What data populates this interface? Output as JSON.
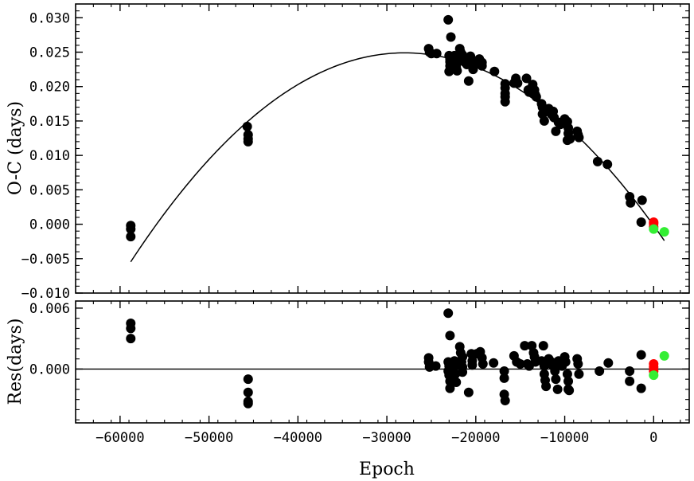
{
  "chart_data": [
    {
      "type": "scatter",
      "panel": "top",
      "xlabel": "",
      "ylabel": "O-C (days)",
      "xlim": [
        -65000,
        4000
      ],
      "ylim": [
        -0.01,
        0.032
      ],
      "y_ticks": [
        "0.030",
        "0.025",
        "0.020",
        "0.015",
        "0.010",
        "0.005",
        "0.000",
        "−0.005",
        "−0.010"
      ],
      "y_tick_values": [
        0.03,
        0.025,
        0.02,
        0.015,
        0.01,
        0.005,
        0.0,
        -0.005,
        -0.01
      ],
      "grid": false,
      "fit_curve": {
        "type": "quadratic",
        "x_range": [
          -58800,
          1200
        ],
        "peak_x": -28000,
        "peak_y": 0.0249,
        "curvature": -3.2e-11,
        "color": "#000000"
      },
      "series": [
        {
          "color": "#000000",
          "points": [
            [
              -58800,
              -0.0002
            ],
            [
              -58800,
              -0.0007
            ],
            [
              -58800,
              -0.0018
            ],
            [
              -45700,
              0.0142
            ],
            [
              -45600,
              0.013
            ],
            [
              -45600,
              0.0124
            ],
            [
              -45600,
              0.012
            ],
            [
              -25300,
              0.0255
            ],
            [
              -25200,
              0.025
            ],
            [
              -25000,
              0.0248
            ],
            [
              -24400,
              0.0248
            ],
            [
              -23100,
              0.0297
            ],
            [
              -22800,
              0.0272
            ],
            [
              -23000,
              0.0245
            ],
            [
              -22900,
              0.024
            ],
            [
              -22900,
              0.0236
            ],
            [
              -22900,
              0.023
            ],
            [
              -22800,
              0.0225
            ],
            [
              -23000,
              0.0222
            ],
            [
              -22400,
              0.0245
            ],
            [
              -22400,
              0.0238
            ],
            [
              -22200,
              0.0232
            ],
            [
              -22200,
              0.0228
            ],
            [
              -22100,
              0.0223
            ],
            [
              -21800,
              0.0255
            ],
            [
              -21700,
              0.025
            ],
            [
              -21500,
              0.0246
            ],
            [
              -21600,
              0.024
            ],
            [
              -21300,
              0.0236
            ],
            [
              -21000,
              0.0232
            ],
            [
              -20800,
              0.0208
            ],
            [
              -20600,
              0.0244
            ],
            [
              -20400,
              0.0238
            ],
            [
              -20300,
              0.0225
            ],
            [
              -20000,
              0.0232
            ],
            [
              -19600,
              0.024
            ],
            [
              -19300,
              0.0235
            ],
            [
              -19300,
              0.023
            ],
            [
              -17900,
              0.0222
            ],
            [
              -16700,
              0.0204
            ],
            [
              -16700,
              0.0198
            ],
            [
              -16700,
              0.019
            ],
            [
              -16700,
              0.0185
            ],
            [
              -16700,
              0.0178
            ],
            [
              -15700,
              0.0205
            ],
            [
              -15500,
              0.0212
            ],
            [
              -15300,
              0.0205
            ],
            [
              -14300,
              0.0212
            ],
            [
              -14100,
              0.0195
            ],
            [
              -14000,
              0.0192
            ],
            [
              -13600,
              0.0203
            ],
            [
              -13400,
              0.0195
            ],
            [
              -13300,
              0.0188
            ],
            [
              -13200,
              0.0185
            ],
            [
              -12600,
              0.0175
            ],
            [
              -12500,
              0.017
            ],
            [
              -12500,
              0.016
            ],
            [
              -12300,
              0.015
            ],
            [
              -12100,
              0.0164
            ],
            [
              -11800,
              0.0168
            ],
            [
              -11500,
              0.016
            ],
            [
              -11300,
              0.0164
            ],
            [
              -11200,
              0.0155
            ],
            [
              -11000,
              0.0135
            ],
            [
              -10700,
              0.0148
            ],
            [
              -10500,
              0.0145
            ],
            [
              -10000,
              0.0153
            ],
            [
              -9700,
              0.0149
            ],
            [
              -9600,
              0.014
            ],
            [
              -9600,
              0.0132
            ],
            [
              -9700,
              0.0122
            ],
            [
              -9400,
              0.0124
            ],
            [
              -8600,
              0.0135
            ],
            [
              -8500,
              0.013
            ],
            [
              -8400,
              0.0126
            ],
            [
              -6300,
              0.0091
            ],
            [
              -5200,
              0.0087
            ],
            [
              -2700,
              0.004
            ],
            [
              -2600,
              0.0031
            ],
            [
              -1300,
              0.0035
            ],
            [
              -1400,
              0.0003
            ]
          ]
        },
        {
          "color": "#ff0000",
          "points": [
            [
              0,
              0.0003
            ],
            [
              0,
              0.0001
            ],
            [
              0,
              -0.0004
            ]
          ]
        },
        {
          "color": "#33ee33",
          "points": [
            [
              0,
              -0.0007
            ],
            [
              1200,
              -0.0011
            ]
          ]
        }
      ]
    },
    {
      "type": "scatter",
      "panel": "bottom",
      "xlabel": "Epoch",
      "ylabel": "Res(days)",
      "xlim": [
        -65000,
        4000
      ],
      "ylim": [
        -0.0053,
        0.0067
      ],
      "x_ticks": [
        "−60000",
        "−50000",
        "−40000",
        "−30000",
        "−20000",
        "−10000",
        "0"
      ],
      "x_tick_values": [
        -60000,
        -50000,
        -40000,
        -30000,
        -20000,
        -10000,
        0
      ],
      "y_ticks": [
        "0.006",
        "0.000"
      ],
      "y_tick_values": [
        0.006,
        0.0
      ],
      "zero_line": true,
      "grid": false,
      "series": [
        {
          "color": "#000000",
          "points": [
            [
              -58800,
              0.0045
            ],
            [
              -58800,
              0.004
            ],
            [
              -58800,
              0.003
            ],
            [
              -45600,
              -0.001
            ],
            [
              -45600,
              -0.0023
            ],
            [
              -45600,
              -0.0032
            ],
            [
              -45600,
              -0.0034
            ],
            [
              -25300,
              0.0011
            ],
            [
              -25300,
              0.0007
            ],
            [
              -25200,
              0.0002
            ],
            [
              -24500,
              0.0003
            ],
            [
              -23100,
              0.0055
            ],
            [
              -22900,
              0.0033
            ],
            [
              -23100,
              0.0007
            ],
            [
              -23000,
              0.0003
            ],
            [
              -23100,
              -0.0002
            ],
            [
              -23000,
              -0.0006
            ],
            [
              -22900,
              -0.0012
            ],
            [
              -22900,
              -0.0019
            ],
            [
              -22400,
              0.0008
            ],
            [
              -22300,
              0.0003
            ],
            [
              -22300,
              -0.0005
            ],
            [
              -22200,
              -0.0013
            ],
            [
              -21800,
              0.0022
            ],
            [
              -21700,
              0.0016
            ],
            [
              -21500,
              0.0012
            ],
            [
              -21600,
              0.0007
            ],
            [
              -21500,
              0.0002
            ],
            [
              -21500,
              -0.0003
            ],
            [
              -20800,
              -0.0023
            ],
            [
              -20500,
              0.0015
            ],
            [
              -20400,
              0.0008
            ],
            [
              -20400,
              0.0004
            ],
            [
              -19900,
              0.0015
            ],
            [
              -19500,
              0.0017
            ],
            [
              -19300,
              0.0011
            ],
            [
              -19200,
              0.0005
            ],
            [
              -18000,
              0.0006
            ],
            [
              -16800,
              -0.0002
            ],
            [
              -16800,
              -0.0009
            ],
            [
              -16800,
              -0.0025
            ],
            [
              -16700,
              -0.0031
            ],
            [
              -15700,
              0.0013
            ],
            [
              -15400,
              0.0007
            ],
            [
              -15000,
              0.0005
            ],
            [
              -14500,
              0.0023
            ],
            [
              -14200,
              0.0005
            ],
            [
              -14000,
              0.0003
            ],
            [
              -13700,
              0.0023
            ],
            [
              -13500,
              0.0016
            ],
            [
              -13400,
              0.0012
            ],
            [
              -13300,
              0.0007
            ],
            [
              -12600,
              0.0008
            ],
            [
              -12400,
              0.0023
            ],
            [
              -12300,
              0.0003
            ],
            [
              -12300,
              -0.0005
            ],
            [
              -12200,
              -0.0011
            ],
            [
              -12100,
              -0.0017
            ],
            [
              -11800,
              0.001
            ],
            [
              -11500,
              0.0007
            ],
            [
              -11300,
              0.0003
            ],
            [
              -11100,
              -0.0002
            ],
            [
              -11000,
              -0.001
            ],
            [
              -10800,
              -0.002
            ],
            [
              -10700,
              0.0008
            ],
            [
              -10300,
              0.0003
            ],
            [
              -10000,
              0.0012
            ],
            [
              -9900,
              0.0007
            ],
            [
              -9700,
              -0.0005
            ],
            [
              -9600,
              -0.0012
            ],
            [
              -9600,
              -0.002
            ],
            [
              -9500,
              -0.0021
            ],
            [
              -8600,
              0.001
            ],
            [
              -8500,
              0.0005
            ],
            [
              -8400,
              -0.0005
            ],
            [
              -6100,
              -0.0002
            ],
            [
              -5100,
              0.0006
            ],
            [
              -2700,
              -0.0002
            ],
            [
              -2700,
              -0.0012
            ],
            [
              -1400,
              0.0014
            ],
            [
              -1400,
              -0.0019
            ]
          ]
        },
        {
          "color": "#ff0000",
          "points": [
            [
              0,
              0.0005
            ],
            [
              0,
              0.0002
            ],
            [
              0,
              -0.0002
            ]
          ]
        },
        {
          "color": "#33ee33",
          "points": [
            [
              0,
              -0.0006
            ],
            [
              1200,
              0.0013
            ]
          ]
        }
      ]
    }
  ]
}
